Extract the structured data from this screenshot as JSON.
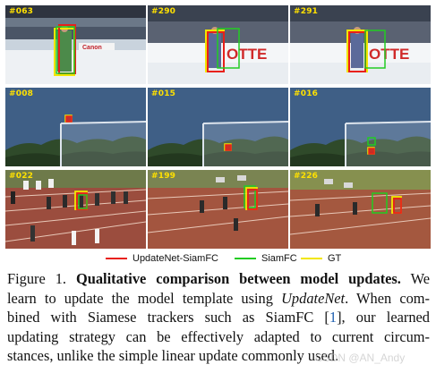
{
  "frames": {
    "row1": [
      "#063",
      "#290",
      "#291"
    ],
    "row2": [
      "#008",
      "#015",
      "#016"
    ],
    "row3": [
      "#022",
      "#199",
      "#226"
    ]
  },
  "legend": {
    "items": [
      {
        "label": "UpdateNet-SiamFC",
        "color": "#e8201a"
      },
      {
        "label": "SiamFC",
        "color": "#22cc22"
      },
      {
        "label": "GT",
        "color": "#f2e600"
      }
    ]
  },
  "caption": {
    "fig_label": "Figure 1.",
    "title": "Qualitative comparison between model updates.",
    "line1_tail": "We",
    "line2_pre": "learn to update the model template using",
    "line2_italic": "UpdateNet",
    "line2_post": ". When com-",
    "line3_pre": "bined with Siamese trackers such as SiamFC [",
    "line3_cite": "1",
    "line3_post": "], our learned",
    "line4": "updating strategy can be effectively adapted to current circum-",
    "line5": "stances, unlike the simple linear update commonly used."
  },
  "watermark": "CSDN @AN_Andy",
  "colors": {
    "updatenet": "#e8201a",
    "siamfc": "#22cc22",
    "gt": "#f2e600",
    "frame_number": "#ffe100"
  }
}
